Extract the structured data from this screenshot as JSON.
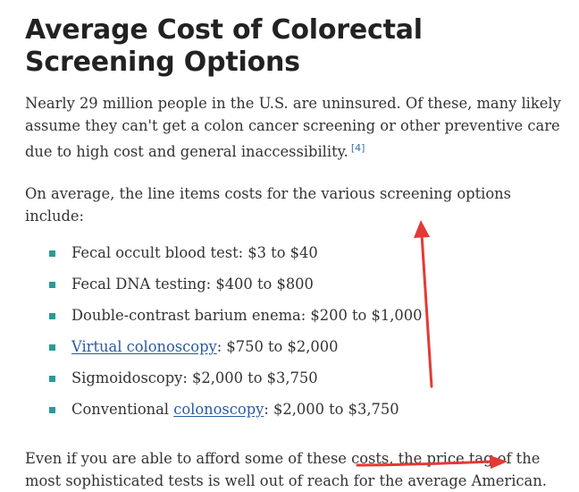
{
  "article": {
    "title": "Average Cost of Colorectal Screening Options",
    "intro": "Nearly 29 million people in the U.S. are uninsured. Of these, many likely assume they can't get a colon cancer screening or other preventive care due to high cost and general inaccessibility.",
    "citation": "[4]",
    "lead": "On average, the line items costs for the various screening options include:",
    "items": [
      {
        "prefix": "",
        "link": "",
        "text": "Fecal occult blood test: $3 to $40"
      },
      {
        "prefix": "",
        "link": "",
        "text": "Fecal DNA testing: $400 to $800"
      },
      {
        "prefix": "",
        "link": "",
        "text": "Double-contrast barium enema: $200 to $1,000"
      },
      {
        "prefix": "",
        "link": "Virtual colonoscopy",
        "text": ": $750 to $2,000"
      },
      {
        "prefix": "",
        "link": "",
        "text": "Sigmoidoscopy: $2,000 to $3,750"
      },
      {
        "prefix": "Conventional ",
        "link": "colonoscopy",
        "text": ": $2,000 to $3,750"
      }
    ],
    "closing": "Even if you are able to afford some of these costs, the price tag of the most sophisticated tests is well out of reach for the average American."
  },
  "colors": {
    "text": "#333333",
    "link": "#2a5aa0",
    "bullet": "#2a9a9a",
    "annotation": "#e53935"
  }
}
